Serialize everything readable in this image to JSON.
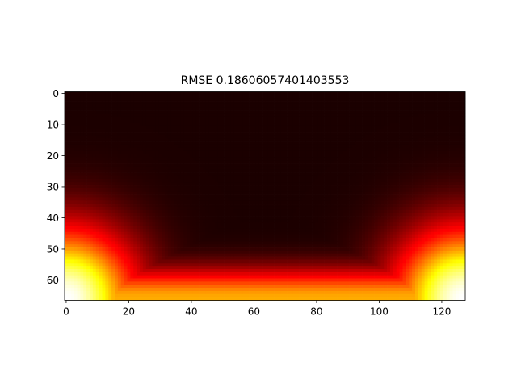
{
  "chart_data": {
    "type": "heatmap",
    "title": "RMSE 0.18606057401403553",
    "xlabel": "",
    "ylabel": "",
    "colormap": "hot",
    "grid": false,
    "legend": "none",
    "shape": [
      67,
      128
    ],
    "xlim": [
      -0.5,
      127.5
    ],
    "ylim": [
      66.5,
      -0.5
    ],
    "x_ticks": [
      0,
      20,
      40,
      60,
      80,
      100,
      120
    ],
    "y_ticks": [
      0,
      10,
      20,
      30,
      40,
      50,
      60
    ],
    "value_model": {
      "description": "values grow toward the bottom edge; strongest at bottom-left and bottom-right corners, weaker band in the bottom middle",
      "corner_peak": 1.0,
      "center_peak": 0.62,
      "vmin": 0.0,
      "vmax": 1.0
    }
  }
}
